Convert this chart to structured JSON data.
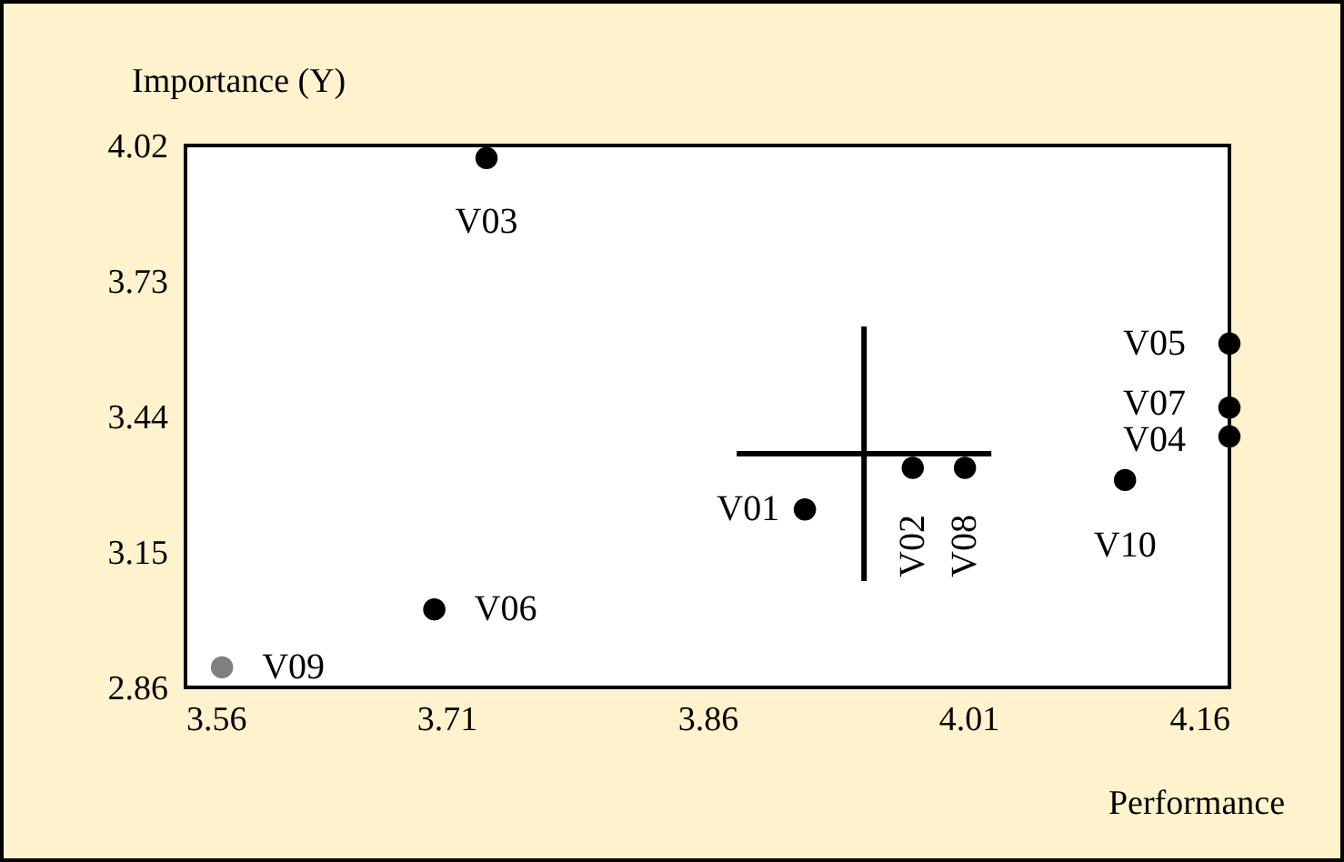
{
  "chart_data": {
    "type": "scatter",
    "xlabel": "Performance",
    "ylabel": "Importance (Y)",
    "x": [
      3.916,
      3.978,
      3.733,
      4.16,
      4.16,
      3.703,
      4.16,
      4.008,
      3.581,
      4.1
    ],
    "series": [
      {
        "values": [
          3.241,
          3.33,
          3.993,
          3.397,
          3.596,
          3.027,
          3.459,
          3.33,
          2.903,
          3.304
        ],
        "colors": [
          "#000000",
          "#000000",
          "#000000",
          "#000000",
          "#000000",
          "#000000",
          "#000000",
          "#000000",
          "#7f7f7f",
          "#000000"
        ]
      }
    ],
    "annotations": [
      {
        "text": "V01",
        "x": 3.916,
        "y": 3.241
      },
      {
        "text": "V02",
        "x": 3.978,
        "y": 3.33
      },
      {
        "text": "V03",
        "x": 3.733,
        "y": 3.993
      },
      {
        "text": "V04",
        "x": 4.16,
        "y": 3.397
      },
      {
        "text": "V05",
        "x": 4.16,
        "y": 3.596
      },
      {
        "text": "V06",
        "x": 3.703,
        "y": 3.027
      },
      {
        "text": "V07",
        "x": 4.16,
        "y": 3.459
      },
      {
        "text": "V08",
        "x": 4.008,
        "y": 3.33
      },
      {
        "text": "V09",
        "x": 3.581,
        "y": 2.903
      },
      {
        "text": "V10",
        "x": 4.1,
        "y": 3.304
      }
    ],
    "ref_lines": [
      {
        "axis": "x",
        "value": 3.95,
        "color": "#000000"
      },
      {
        "axis": "y",
        "value": 3.36,
        "color": "#000000"
      }
    ],
    "xlim": [
      3.56,
      4.16
    ],
    "ylim": [
      2.86,
      4.02
    ],
    "xticks": [
      3.56,
      3.71,
      3.86,
      4.01,
      4.16
    ],
    "yticks": [
      2.86,
      3.15,
      3.44,
      3.73,
      4.02
    ],
    "grid": false,
    "marker": "circle"
  }
}
